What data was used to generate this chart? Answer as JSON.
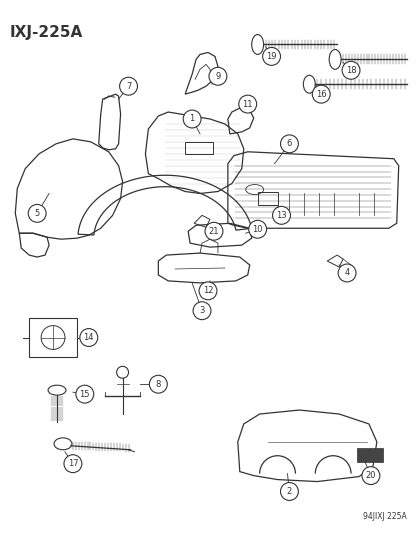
{
  "title": "IXJ-225A",
  "bottom_code": "94JIXJ 225A",
  "bg_color": "#ffffff",
  "line_color": "#333333",
  "fig_width": 4.16,
  "fig_height": 5.33,
  "dpi": 100
}
